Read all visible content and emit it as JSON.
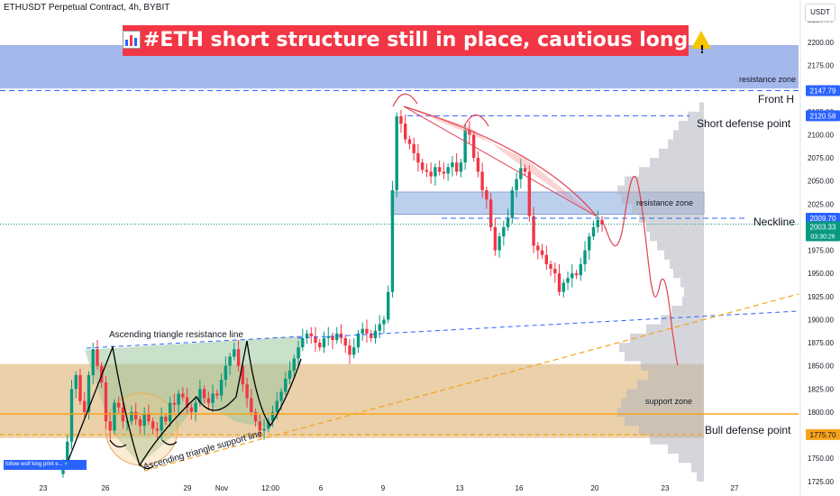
{
  "header": {
    "symbol_line": "ETHUSDT Perpetual Contract, 4h, BYBIT",
    "currency_button": "USDT"
  },
  "banner": {
    "text": "#ETH short structure still in place, cautious long",
    "color": "#f23645"
  },
  "follow_badge": {
    "text": "follow wolf king print e... ",
    "icon": "green-heart-icon"
  },
  "annotations": {
    "resistance_zone_top": "resistance zone",
    "front_h": "Front H",
    "short_defense": "Short defense point",
    "resistance_zone_mid": "resistance zone",
    "neckline": "Neckline",
    "asc_resistance": "Ascending triangle resistance line",
    "asc_support": "Ascending triangle support line",
    "support_zone": "support zone",
    "bull_defense": "Bull defense point"
  },
  "price_tags": {
    "front_h": "2147.79",
    "short_defense": "2120.58",
    "neckline": "2009.70",
    "last_price": "2003.33",
    "countdown": "03:30:26",
    "bull_defense": "1775.70"
  },
  "colors": {
    "up": "#089981",
    "down": "#f23645",
    "level_blue": "#2962ff",
    "support_orange": "#f7a21b",
    "volume_profile": "#b2b5be"
  },
  "chart_data": {
    "type": "candlestick",
    "timeframe": "4h",
    "ylim": [
      1718,
      2237
    ],
    "y_ticks": [
      1725,
      1750,
      1775,
      1800,
      1825,
      1850,
      1875,
      1900,
      1925,
      1950,
      1975,
      2000,
      2025,
      2050,
      2075,
      2100,
      2125,
      2150,
      2175,
      2200,
      2225
    ],
    "x_ticks": [
      "23",
      "26",
      "29",
      "Nov",
      "12:00",
      "6",
      "9",
      "13",
      "16",
      "20",
      "23",
      "27"
    ],
    "levels": [
      {
        "label": "Front H",
        "price": 2147.79
      },
      {
        "label": "Short defense point",
        "price": 2120.58
      },
      {
        "label": "Neckline",
        "price": 2009.7
      },
      {
        "label": "Bull defense point",
        "price": 1775.7
      }
    ],
    "zones": [
      {
        "label": "resistance zone",
        "from": 2150,
        "to": 2197
      },
      {
        "label": "resistance zone",
        "from": 2014,
        "to": 2038
      },
      {
        "label": "support zone",
        "from": 1772,
        "to": 1852
      }
    ],
    "last_price": 2003.33,
    "closes": [
      1745,
      1768,
      1825,
      1840,
      1812,
      1800,
      1840,
      1868,
      1850,
      1832,
      1790,
      1780,
      1810,
      1805,
      1790,
      1790,
      1800,
      1792,
      1785,
      1798,
      1790,
      1782,
      1780,
      1795,
      1790,
      1810,
      1808,
      1820,
      1816,
      1805,
      1800,
      1810,
      1825,
      1815,
      1810,
      1820,
      1818,
      1835,
      1850,
      1860,
      1868,
      1850,
      1830,
      1815,
      1800,
      1790,
      1780,
      1782,
      1790,
      1800,
      1812,
      1822,
      1836,
      1845,
      1858,
      1870,
      1880,
      1885,
      1882,
      1875,
      1870,
      1880,
      1882,
      1878,
      1885,
      1880,
      1872,
      1862,
      1870,
      1885,
      1890,
      1885,
      1880,
      1888,
      1895,
      1900,
      1930,
      2040,
      2120,
      2112,
      2095,
      2090,
      2080,
      2070,
      2062,
      2060,
      2055,
      2065,
      2060,
      2058,
      2065,
      2070,
      2060,
      2070,
      2105,
      2100,
      2075,
      2060,
      2040,
      2030,
      2000,
      1975,
      1990,
      2000,
      2010,
      2040,
      2052,
      2064,
      2060,
      2012,
      1980,
      1975,
      1970,
      1960,
      1955,
      1950,
      1930,
      1940,
      1945,
      1950,
      1948,
      1960,
      1975,
      1990,
      2000,
      2008,
      2003
    ]
  }
}
